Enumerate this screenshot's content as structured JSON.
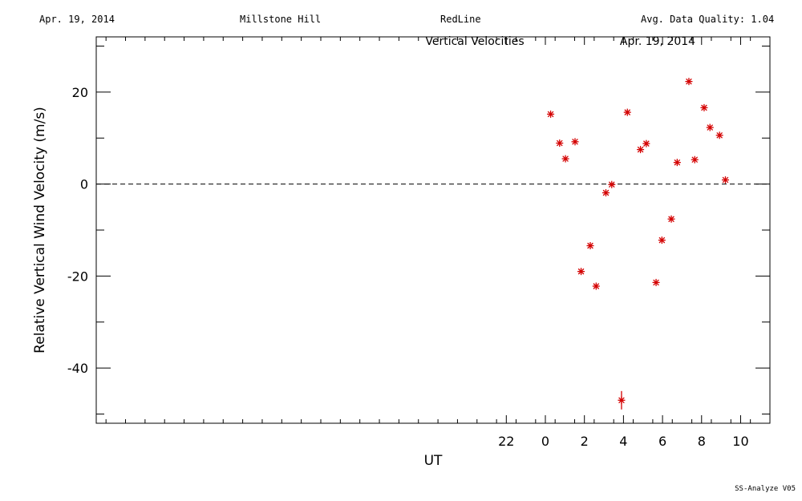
{
  "header": {
    "date": "Apr. 19, 2014",
    "site": "Millstone Hill",
    "instrument": "RedLine",
    "quality": "Avg. Data Quality: 1.04"
  },
  "footer": "SS-Analyze V05",
  "chart_data": {
    "type": "scatter",
    "title": "Vertical Velocities",
    "subtitle": "Apr. 19, 2014",
    "xlabel": "UT",
    "ylabel": "Relative Vertical Wind Velocity (m/s)",
    "xlim": [
      -23,
      11.5
    ],
    "ylim": [
      -52,
      32
    ],
    "xticks": [
      22,
      0,
      2,
      4,
      6,
      8,
      10
    ],
    "xtick_values": [
      -2,
      0,
      2,
      4,
      6,
      8,
      10
    ],
    "yticks": [
      20,
      0,
      -20,
      -40
    ],
    "zero_line": "dashed",
    "marker_color": "#d40000",
    "series": [
      {
        "x": [
          0.27,
          0.73,
          1.03,
          1.52,
          1.83,
          2.3,
          2.6,
          3.1,
          3.4,
          3.9,
          4.2,
          4.87,
          5.17,
          5.67,
          5.97,
          6.45,
          6.75,
          7.35,
          7.65,
          8.13,
          8.43,
          8.92,
          9.22
        ],
        "y": [
          15.2,
          8.9,
          5.5,
          9.2,
          -19.0,
          -13.4,
          -22.2,
          -1.9,
          -0.1,
          -47.0,
          15.6,
          7.5,
          8.8,
          -21.4,
          -12.2,
          -7.6,
          4.7,
          22.3,
          5.3,
          16.6,
          12.3,
          10.6,
          0.9
        ],
        "y_err": [
          0,
          0,
          0,
          0,
          0,
          0,
          0,
          0,
          0,
          2.0,
          0,
          0,
          0,
          0,
          0,
          0,
          0,
          0,
          0,
          0,
          0,
          0,
          0
        ]
      }
    ]
  }
}
